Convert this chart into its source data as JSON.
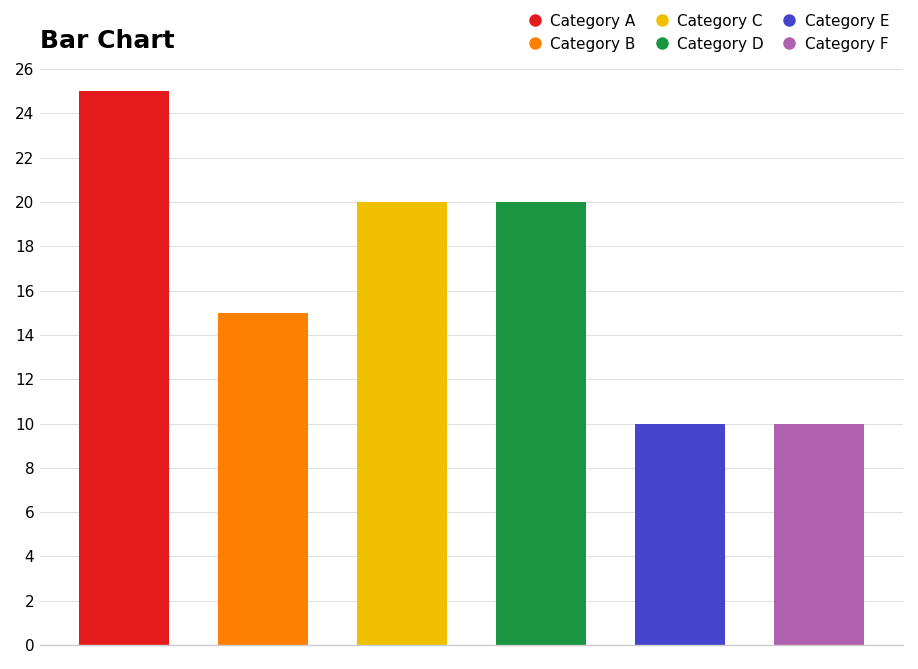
{
  "title": "Bar Chart",
  "categories": [
    "Category A",
    "Category B",
    "Category C",
    "Category D",
    "Category E",
    "Category F"
  ],
  "values": [
    25,
    15,
    20,
    20,
    10,
    10
  ],
  "colors": [
    "#e41a1c",
    "#ff7f00",
    "#f0c000",
    "#1a9641",
    "#4444cc",
    "#b060b0"
  ],
  "ylim": [
    0,
    26
  ],
  "yticks": [
    0,
    2,
    4,
    6,
    8,
    10,
    12,
    14,
    16,
    18,
    20,
    22,
    24,
    26
  ],
  "background_color": "#ffffff",
  "title_fontsize": 18,
  "title_fontweight": "bold",
  "legend_ncol": 3,
  "bar_width": 0.65
}
